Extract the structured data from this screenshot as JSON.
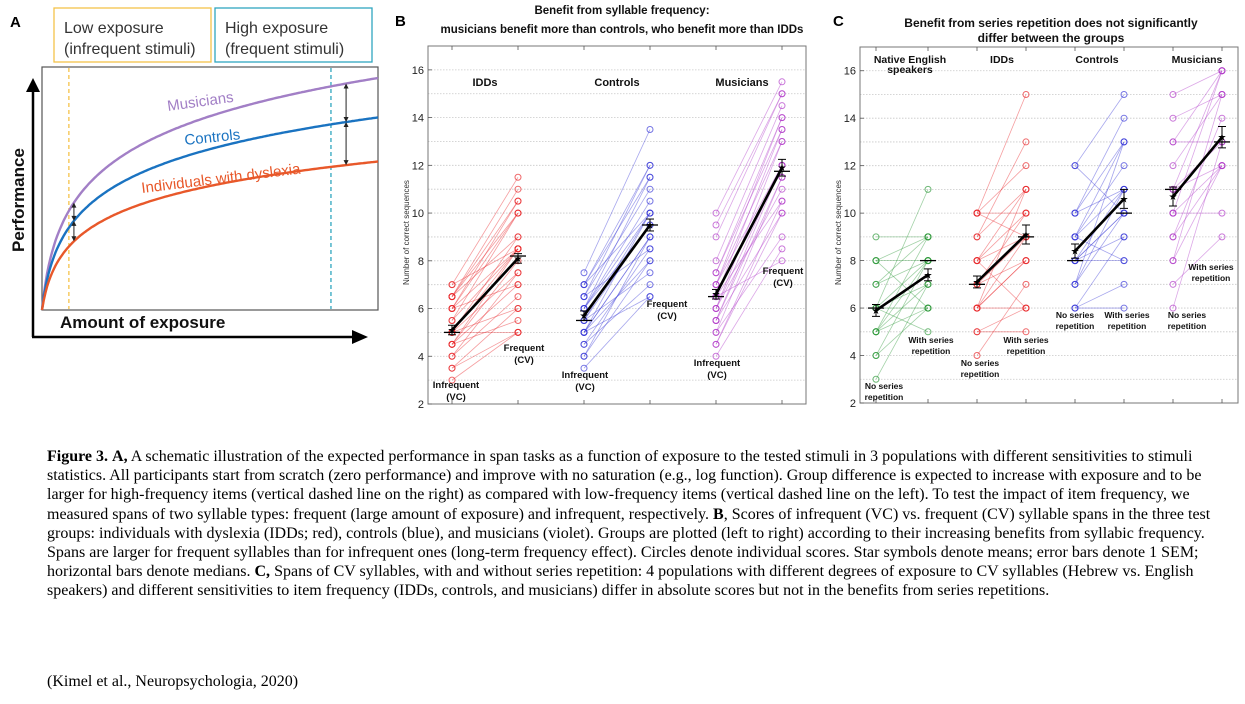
{
  "figure": {
    "panel_labels": {
      "a": "A",
      "b": "B",
      "c": "C"
    }
  },
  "chart_data": [
    {
      "id": "A",
      "type": "line",
      "title": "",
      "xlabel": "Amount of exposure",
      "ylabel": "Performance",
      "legend_boxes": [
        {
          "label_line1": "Low exposure",
          "label_line2": "(infrequent stimuli)",
          "color": "#f5c24a"
        },
        {
          "label_line1": "High exposure",
          "label_line2": "(frequent stimuli)",
          "color": "#2fa6bf"
        }
      ],
      "reference_lines": [
        {
          "name": "low-exposure",
          "x": 0.08,
          "color": "#f5c24a"
        },
        {
          "name": "high-exposure",
          "x": 0.86,
          "color": "#2fa6bf"
        }
      ],
      "series": [
        {
          "name": "Musicians",
          "color": "#a27fc6",
          "scale": 1.0
        },
        {
          "name": "Controls",
          "color": "#1a73c1",
          "scale": 0.83
        },
        {
          "name": "Individuals with dyslexia",
          "color": "#e8582a",
          "scale": 0.64
        }
      ],
      "function": "log",
      "grid": false
    },
    {
      "id": "B",
      "type": "scatter",
      "title_line1": "Benefit from syllable frequency:",
      "title_line2": "musicians benefit more than controls, who benefit more than IDDs",
      "ylabel": "Number of correct sequences",
      "ylim": [
        2,
        17
      ],
      "yticks": [
        2,
        4,
        6,
        8,
        10,
        12,
        14,
        16
      ],
      "grid": true,
      "condition_labels": {
        "left_line1": "Infrequent",
        "left_line2": "(VC)",
        "right_line1": "Frequent",
        "right_line2": "(CV)"
      },
      "groups": [
        {
          "name": "IDDs",
          "color": "#e8262a",
          "mean": [
            5.1,
            8.1
          ],
          "sem": [
            0.2,
            0.2
          ],
          "median": [
            5.0,
            8.2
          ],
          "pairs": [
            [
              7,
              11.5
            ],
            [
              6.5,
              11
            ],
            [
              6.5,
              10.5
            ],
            [
              6,
              10.5
            ],
            [
              6,
              10
            ],
            [
              5.5,
              10
            ],
            [
              6.5,
              10
            ],
            [
              5,
              9
            ],
            [
              5.5,
              8.5
            ],
            [
              4.5,
              8.5
            ],
            [
              5,
              8.5
            ],
            [
              6,
              8.5
            ],
            [
              4.5,
              8
            ],
            [
              4,
              7.5
            ],
            [
              5,
              7.5
            ],
            [
              4.5,
              7
            ],
            [
              6,
              7
            ],
            [
              4,
              6.5
            ],
            [
              3.5,
              6
            ],
            [
              5,
              6
            ],
            [
              4.5,
              5.5
            ],
            [
              3.5,
              5
            ],
            [
              3,
              5
            ],
            [
              5,
              5
            ],
            [
              7,
              8.5
            ],
            [
              6.5,
              9
            ]
          ]
        },
        {
          "name": "Controls",
          "color": "#3a3ad8",
          "mean": [
            5.7,
            9.5
          ],
          "sem": [
            0.2,
            0.25
          ],
          "median": [
            5.5,
            9.5
          ],
          "pairs": [
            [
              7.5,
              13.5
            ],
            [
              7,
              12
            ],
            [
              6.5,
              12
            ],
            [
              7,
              11.5
            ],
            [
              6,
              11.5
            ],
            [
              6.5,
              11
            ],
            [
              6,
              10.5
            ],
            [
              5.5,
              10
            ],
            [
              7,
              10
            ],
            [
              5,
              10
            ],
            [
              6,
              9.5
            ],
            [
              5.5,
              9.5
            ],
            [
              5,
              9
            ],
            [
              5,
              9
            ],
            [
              6.5,
              8.5
            ],
            [
              4.5,
              8.5
            ],
            [
              5,
              8
            ],
            [
              4,
              8
            ],
            [
              5.5,
              7.5
            ],
            [
              4.5,
              7
            ],
            [
              3.5,
              6.5
            ],
            [
              5,
              6.5
            ],
            [
              4,
              9
            ],
            [
              6,
              10
            ]
          ]
        },
        {
          "name": "Musicians",
          "color": "#b23cc9",
          "mean": [
            6.6,
            11.9
          ],
          "sem": [
            0.2,
            0.35
          ],
          "median": [
            6.5,
            11.75
          ],
          "pairs": [
            [
              10,
              15.5
            ],
            [
              9.5,
              15
            ],
            [
              9,
              15
            ],
            [
              8,
              14.5
            ],
            [
              7.5,
              14
            ],
            [
              7,
              14
            ],
            [
              7.5,
              13.5
            ],
            [
              6.5,
              13.5
            ],
            [
              7,
              13
            ],
            [
              6,
              13
            ],
            [
              6,
              12
            ],
            [
              5.5,
              12
            ],
            [
              6.5,
              12
            ],
            [
              5.5,
              11.5
            ],
            [
              5,
              11.5
            ],
            [
              6,
              11
            ],
            [
              4.5,
              10.5
            ],
            [
              6.5,
              10.5
            ],
            [
              5.5,
              10
            ],
            [
              4.5,
              10
            ],
            [
              5,
              9
            ],
            [
              4,
              8.5
            ],
            [
              6.5,
              8
            ],
            [
              7,
              12
            ]
          ]
        }
      ]
    },
    {
      "id": "C",
      "type": "scatter",
      "title_line1": "Benefit from series repetition does not significantly",
      "title_line2": "differ between the groups",
      "ylabel": "Number of correct sequences",
      "ylim": [
        2,
        17
      ],
      "yticks": [
        2,
        4,
        6,
        8,
        10,
        12,
        14,
        16
      ],
      "grid": true,
      "condition_labels": {
        "left_line1": "No series",
        "left_line2": "repetition",
        "right_line1": "With series",
        "right_line2": "repetition"
      },
      "groups": [
        {
          "name_line1": "Native English",
          "name_line2": "speakers",
          "color": "#2e9a3a",
          "mean": [
            5.9,
            7.4
          ],
          "sem": [
            0.25,
            0.25
          ],
          "median": [
            6,
            8
          ],
          "pairs": [
            [
              9,
              9
            ],
            [
              8,
              9
            ],
            [
              8,
              8
            ],
            [
              7,
              8
            ],
            [
              7,
              9
            ],
            [
              6,
              8
            ],
            [
              6,
              6
            ],
            [
              6,
              11
            ],
            [
              6,
              5
            ],
            [
              5,
              8
            ],
            [
              5,
              7
            ],
            [
              5,
              6
            ],
            [
              4,
              8
            ],
            [
              4,
              6
            ],
            [
              3,
              7
            ],
            [
              6,
              7
            ],
            [
              8,
              6
            ],
            [
              5,
              9
            ]
          ]
        },
        {
          "name_line1": "IDDs",
          "name_line2": "",
          "color": "#e8262a",
          "mean": [
            7.1,
            9.1
          ],
          "sem": [
            0.25,
            0.4
          ],
          "median": [
            7,
            9
          ],
          "pairs": [
            [
              10,
              15
            ],
            [
              10,
              12
            ],
            [
              10,
              10
            ],
            [
              9,
              13
            ],
            [
              9,
              11
            ],
            [
              8,
              11
            ],
            [
              8,
              10
            ],
            [
              8,
              9
            ],
            [
              7,
              9
            ],
            [
              7,
              8
            ],
            [
              7,
              10
            ],
            [
              6,
              8
            ],
            [
              6,
              9
            ],
            [
              6,
              11
            ],
            [
              6,
              6
            ],
            [
              5,
              6
            ],
            [
              5,
              5
            ],
            [
              4,
              7
            ],
            [
              8,
              6
            ],
            [
              6,
              8
            ],
            [
              10,
              9
            ]
          ]
        },
        {
          "name_line1": "Controls",
          "name_line2": "",
          "color": "#3a3ad8",
          "mean": [
            8.4,
            10.6
          ],
          "sem": [
            0.3,
            0.4
          ],
          "median": [
            8,
            10
          ],
          "pairs": [
            [
              12,
              15
            ],
            [
              12,
              10
            ],
            [
              10,
              14
            ],
            [
              10,
              13
            ],
            [
              9,
              13
            ],
            [
              9,
              12
            ],
            [
              9,
              11
            ],
            [
              8,
              11
            ],
            [
              8,
              10
            ],
            [
              8,
              10
            ],
            [
              8,
              8
            ],
            [
              8,
              9
            ],
            [
              7,
              11
            ],
            [
              7,
              10
            ],
            [
              7,
              13
            ],
            [
              6,
              9
            ],
            [
              6,
              7
            ],
            [
              6,
              6
            ],
            [
              10,
              11
            ],
            [
              9,
              8
            ]
          ]
        },
        {
          "name_line1": "Musicians",
          "name_line2": "",
          "color": "#b23cc9",
          "mean": [
            10.7,
            13.2
          ],
          "sem": [
            0.4,
            0.45
          ],
          "median": [
            11,
            13
          ],
          "pairs": [
            [
              15,
              16
            ],
            [
              14,
              15
            ],
            [
              13,
              16
            ],
            [
              13,
              13
            ],
            [
              12,
              15
            ],
            [
              11,
              13
            ],
            [
              11,
              12
            ],
            [
              11,
              16
            ],
            [
              10,
              12
            ],
            [
              10,
              10
            ],
            [
              9,
              12
            ],
            [
              9,
              14
            ],
            [
              8,
              12
            ],
            [
              8,
              15
            ],
            [
              7,
              9
            ],
            [
              6,
              13
            ],
            [
              10,
              16
            ]
          ]
        }
      ]
    }
  ],
  "caption": {
    "fig_label": "Figure 3.",
    "a_label": "A,",
    "a_text": " A schematic illustration  of the expected performance in span tasks as a function of exposure to the tested stimuli  in 3 populations with  different sensitivities  to stimuli  statistics. All  participants start from scratch (zero performance) and improve with  no saturation (e.g., log function). Group difference is expected to increase with  exposure and to be larger  for high-frequency  items  (vertical  dashed line  on the right)  as compared with  low-frequency items (vertical  dashed line  on the left).  To test the impact  of item  frequency, we measured spans of two syllable  types:  frequent  (large  amount  of exposure) and infrequent,  respectively. ",
    "b_label": "B",
    "b_text": ", Scores of infrequent  (VC) vs. frequent  (CV) syllable  spans in the three test groups: individuals  with  dyslexia  (IDDs; red), controls (blue),  and musicians  (violet).  Groups are plotted (left  to right)  according to their  increasing  benefits  from  syllabic  frequency.  Spans are larger  for frequent syllables  than for infrequent  ones (long-term  frequency effect). Circles denote individual  scores. Star symbols denote means; error bars denote 1 SEM; horizontal  bars denote medians. ",
    "c_label": "C,",
    "c_text": " Spans of CV syllables,  with  and without  series repetition:  4 populations with  different  degrees of exposure to CV syllables (Hebrew vs. English  speakers) and different  sensitivities  to item  frequency (IDDs, controls, and musicians)  differ  in  absolute scores but not in  the benefits from series repetitions.",
    "citation": "(Kimel  et al., Neuropsychologia, 2020)"
  }
}
